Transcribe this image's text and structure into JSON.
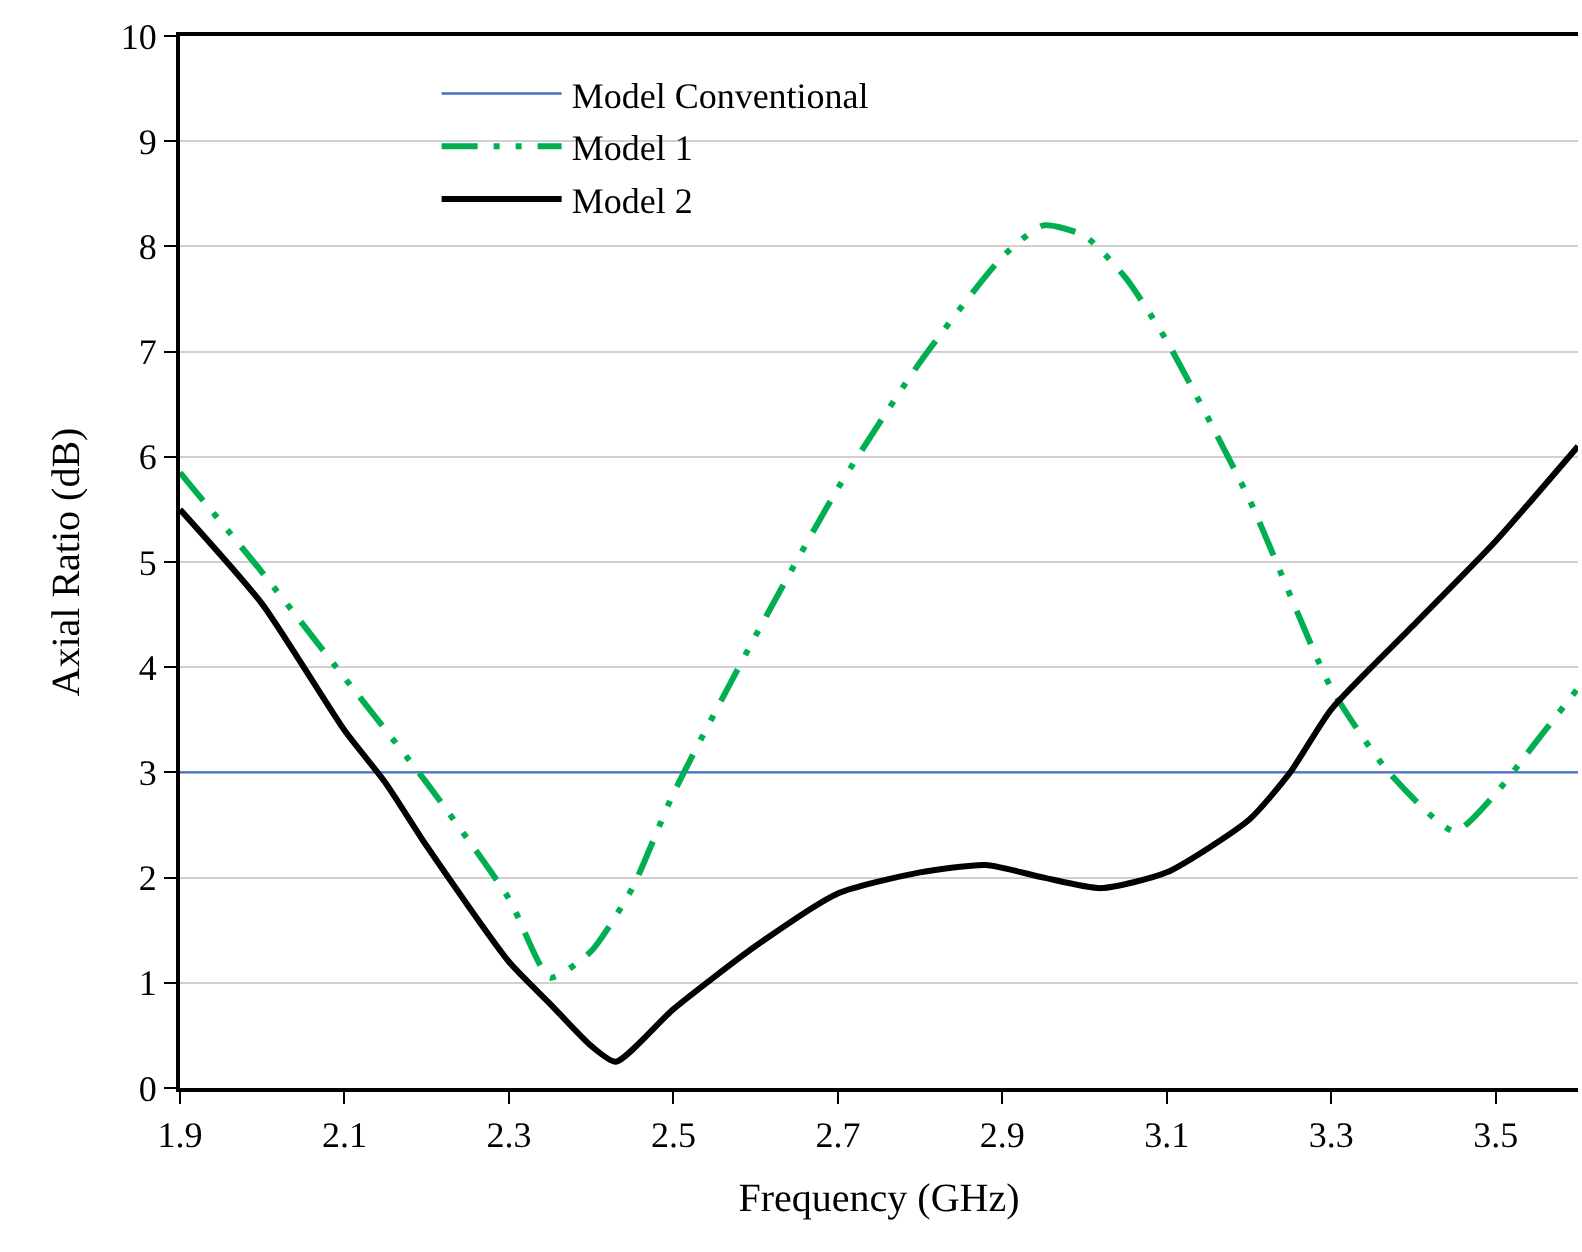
{
  "chart_data": {
    "type": "line",
    "xlabel": "Frequency (GHz)",
    "ylabel": "Axial Ratio (dB)",
    "xlim": [
      1.9,
      3.6
    ],
    "xticks": [
      1.9,
      2.1,
      2.3,
      2.5,
      2.7,
      2.9,
      3.1,
      3.3,
      3.5
    ],
    "ylim": [
      0,
      10
    ],
    "yticks": [
      0,
      1,
      2,
      3,
      4,
      5,
      6,
      7,
      8,
      9,
      10
    ],
    "grid": "y",
    "legend": "top left",
    "series": [
      {
        "name": "Model Conventional",
        "color": "#4472c4",
        "x": [
          1.9,
          3.6
        ],
        "values": [
          3,
          3
        ],
        "line_style": "solid"
      },
      {
        "name": "Model 1",
        "color": "#00b050",
        "x": [
          1.9,
          2.0,
          2.1,
          2.2,
          2.3,
          2.35,
          2.4,
          2.45,
          2.5,
          2.6,
          2.7,
          2.8,
          2.9,
          2.95,
          3.0,
          3.05,
          3.1,
          3.2,
          3.3,
          3.37,
          3.45,
          3.5,
          3.55,
          3.6
        ],
        "values": [
          5.85,
          4.9,
          3.9,
          2.9,
          1.8,
          1.05,
          1.3,
          1.9,
          2.8,
          4.3,
          5.7,
          6.9,
          7.9,
          8.2,
          8.1,
          7.7,
          7.1,
          5.6,
          3.8,
          3.0,
          2.44,
          2.8,
          3.3,
          3.8
        ],
        "line_style": "dashed"
      },
      {
        "name": "Model 2",
        "color": "#000000",
        "x": [
          1.9,
          2.0,
          2.1,
          2.15,
          2.2,
          2.3,
          2.35,
          2.4,
          2.43,
          2.5,
          2.6,
          2.7,
          2.8,
          2.88,
          2.95,
          3.02,
          3.1,
          3.2,
          3.25,
          3.3,
          3.4,
          3.5,
          3.6
        ],
        "values": [
          5.5,
          4.6,
          3.4,
          2.9,
          2.3,
          1.2,
          0.8,
          0.4,
          0.25,
          0.75,
          1.35,
          1.85,
          2.05,
          2.12,
          2.0,
          1.9,
          2.05,
          2.55,
          3.0,
          3.6,
          4.4,
          5.2,
          6.1
        ],
        "line_style": "solid"
      }
    ]
  }
}
